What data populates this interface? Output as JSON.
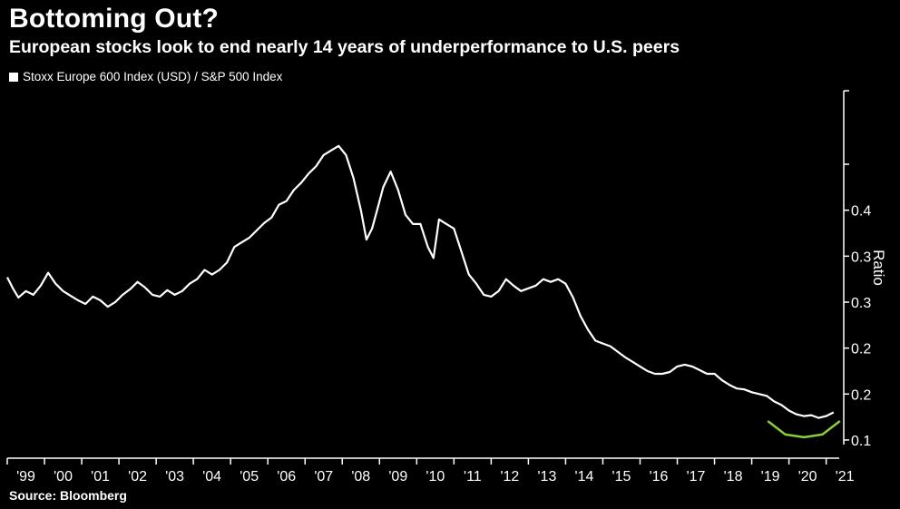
{
  "header": {
    "title": "Bottoming Out?",
    "subtitle": "European stocks look to end nearly 14 years of underperformance to U.S. peers"
  },
  "legend": {
    "label": "Stoxx Europe 600 Index (USD) / S&P 500 Index"
  },
  "footer": {
    "source": "Source: Bloomberg"
  },
  "colors": {
    "background": "#000000",
    "line": "#ffffff",
    "highlight": "#8ccf3c"
  },
  "chart_data": {
    "type": "line",
    "title": "Bottoming Out?",
    "subtitle": "European stocks look to end nearly 14 years of underperformance to U.S. peers",
    "ylabel": "Ratio",
    "xlabel": "",
    "y_axis_side": "right",
    "ylim": [
      0.095,
      0.48
    ],
    "xlim": [
      1999.0,
      2021.35
    ],
    "x_tick_labels": [
      "'99",
      "'00",
      "'01",
      "'02",
      "'03",
      "'04",
      "'05",
      "'06",
      "'07",
      "'08",
      "'09",
      "'10",
      "'11",
      "'12",
      "'13",
      "'14",
      "'15",
      "'16",
      "'17",
      "'18",
      "'19",
      "'20",
      "'21"
    ],
    "x_tick_positions": [
      1999.5,
      2000.5,
      2001.5,
      2002.5,
      2003.5,
      2004.5,
      2005.5,
      2006.5,
      2007.5,
      2008.5,
      2009.5,
      2010.5,
      2011.5,
      2012.5,
      2013.5,
      2014.5,
      2015.5,
      2016.5,
      2017.5,
      2018.5,
      2019.5,
      2020.5,
      2021.5
    ],
    "y_tick_labels": [
      "0.1",
      "0.2",
      "0.2",
      "0.3",
      "0.3",
      "0.4"
    ],
    "y_tick_values": [
      0.1,
      0.15,
      0.2,
      0.25,
      0.3,
      0.35,
      0.4
    ],
    "y_tick_text_values": [
      0.1,
      0.15,
      0.2,
      0.25,
      0.3,
      0.35
    ],
    "grid": false,
    "legend_position": "top-left",
    "series": [
      {
        "name": "Stoxx Europe 600 Index (USD) / S&P 500 Index",
        "x": [
          1999.0,
          1999.15,
          1999.3,
          1999.5,
          1999.7,
          1999.9,
          2000.1,
          2000.3,
          2000.5,
          2000.7,
          2000.9,
          2001.1,
          2001.3,
          2001.5,
          2001.7,
          2001.9,
          2002.1,
          2002.3,
          2002.5,
          2002.7,
          2002.9,
          2003.1,
          2003.3,
          2003.5,
          2003.7,
          2003.9,
          2004.1,
          2004.3,
          2004.5,
          2004.7,
          2004.9,
          2005.1,
          2005.3,
          2005.5,
          2005.7,
          2005.9,
          2006.1,
          2006.3,
          2006.5,
          2006.7,
          2006.9,
          2007.1,
          2007.3,
          2007.5,
          2007.7,
          2007.9,
          2008.1,
          2008.3,
          2008.5,
          2008.65,
          2008.8,
          2008.95,
          2009.1,
          2009.3,
          2009.5,
          2009.7,
          2009.9,
          2010.1,
          2010.3,
          2010.45,
          2010.6,
          2010.8,
          2011.0,
          2011.2,
          2011.4,
          2011.6,
          2011.8,
          2012.0,
          2012.2,
          2012.4,
          2012.6,
          2012.8,
          2013.0,
          2013.2,
          2013.4,
          2013.6,
          2013.8,
          2014.0,
          2014.2,
          2014.4,
          2014.6,
          2014.8,
          2015.0,
          2015.2,
          2015.4,
          2015.6,
          2015.8,
          2016.0,
          2016.2,
          2016.4,
          2016.6,
          2016.8,
          2017.0,
          2017.2,
          2017.4,
          2017.6,
          2017.8,
          2018.0,
          2018.2,
          2018.4,
          2018.6,
          2018.8,
          2019.0,
          2019.2,
          2019.4,
          2019.6,
          2019.8,
          2020.0,
          2020.2,
          2020.4,
          2020.6,
          2020.8,
          2021.0,
          2021.2
        ],
        "values": [
          0.277,
          0.265,
          0.255,
          0.262,
          0.258,
          0.268,
          0.282,
          0.27,
          0.262,
          0.257,
          0.252,
          0.248,
          0.256,
          0.252,
          0.245,
          0.25,
          0.258,
          0.264,
          0.272,
          0.266,
          0.258,
          0.256,
          0.263,
          0.258,
          0.262,
          0.27,
          0.275,
          0.285,
          0.28,
          0.285,
          0.293,
          0.31,
          0.315,
          0.32,
          0.328,
          0.336,
          0.342,
          0.356,
          0.36,
          0.372,
          0.38,
          0.39,
          0.398,
          0.41,
          0.415,
          0.42,
          0.41,
          0.385,
          0.35,
          0.318,
          0.33,
          0.352,
          0.375,
          0.392,
          0.372,
          0.345,
          0.335,
          0.335,
          0.31,
          0.298,
          0.34,
          0.335,
          0.33,
          0.305,
          0.28,
          0.27,
          0.258,
          0.256,
          0.262,
          0.275,
          0.268,
          0.262,
          0.265,
          0.268,
          0.275,
          0.272,
          0.275,
          0.27,
          0.255,
          0.235,
          0.22,
          0.208,
          0.205,
          0.202,
          0.196,
          0.19,
          0.185,
          0.18,
          0.175,
          0.172,
          0.172,
          0.174,
          0.18,
          0.182,
          0.18,
          0.176,
          0.172,
          0.172,
          0.165,
          0.16,
          0.156,
          0.155,
          0.152,
          0.15,
          0.148,
          0.142,
          0.138,
          0.132,
          0.128,
          0.126,
          0.127,
          0.124,
          0.126,
          0.13
        ]
      }
    ],
    "annotations": [
      {
        "type": "curve",
        "color": "#8ccf3c",
        "x": [
          2019.45,
          2019.9,
          2020.4,
          2020.9,
          2021.35
        ],
        "values": [
          0.12,
          0.106,
          0.103,
          0.106,
          0.12
        ]
      }
    ]
  }
}
